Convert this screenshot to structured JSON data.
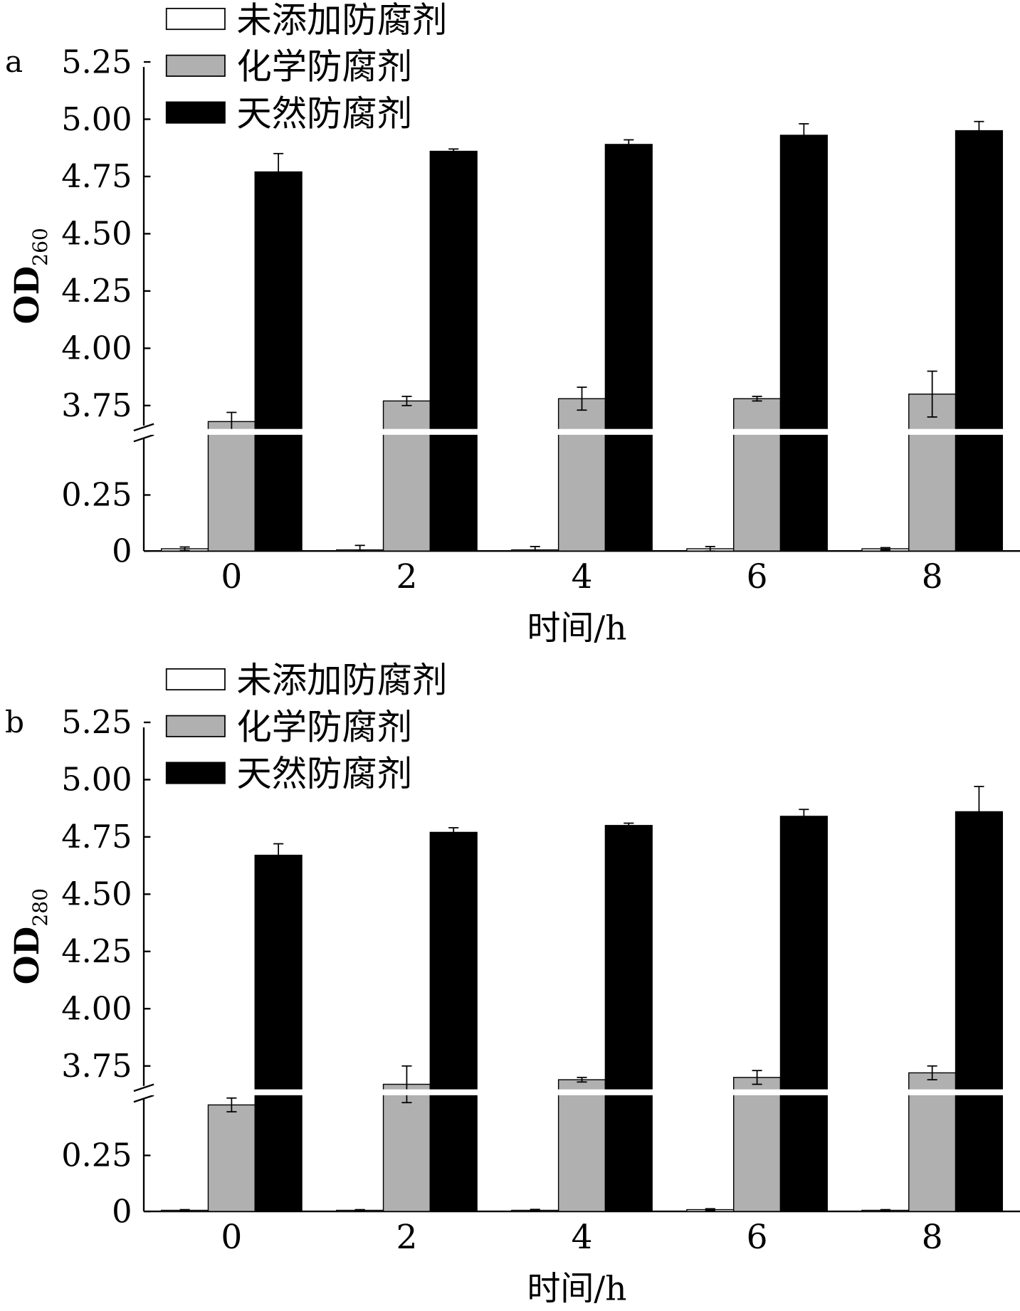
{
  "chart_data": [
    {
      "type": "bar",
      "panel_label": "a",
      "ylabel_main": "OD",
      "ylabel_sub": "260",
      "xlabel": "时间/h",
      "categories": [
        "0",
        "2",
        "4",
        "6",
        "8"
      ],
      "y_axis_break": true,
      "ylim_lower": [
        0,
        0.45
      ],
      "ylim_upper": [
        3.65,
        5.25
      ],
      "yticks_lower": [
        "0",
        "0.25"
      ],
      "yticks_upper": [
        "3.75",
        "4.00",
        "4.25",
        "4.50",
        "4.75",
        "5.00",
        "5.25"
      ],
      "legend_position": "top-left",
      "series": [
        {
          "name": "未添加防腐剂",
          "color": "#ffffff",
          "values": [
            0.01,
            0.005,
            0.005,
            0.01,
            0.01
          ],
          "errors": [
            0.008,
            0.02,
            0.015,
            0.01,
            0.005
          ]
        },
        {
          "name": "化学防腐剂",
          "color": "#b0b0b0",
          "values": [
            3.68,
            3.77,
            3.78,
            3.78,
            3.8
          ],
          "errors": [
            0.04,
            0.02,
            0.05,
            0.01,
            0.1
          ]
        },
        {
          "name": "天然防腐剂",
          "color": "#000000",
          "values": [
            4.77,
            4.86,
            4.89,
            4.93,
            4.95
          ],
          "errors": [
            0.08,
            0.01,
            0.02,
            0.05,
            0.04
          ]
        }
      ]
    },
    {
      "type": "bar",
      "panel_label": "b",
      "ylabel_main": "OD",
      "ylabel_sub": "280",
      "xlabel": "时间/h",
      "categories": [
        "0",
        "2",
        "4",
        "6",
        "8"
      ],
      "y_axis_break": true,
      "ylim_lower": [
        0,
        0.45
      ],
      "ylim_upper": [
        3.55,
        5.25
      ],
      "yticks_lower": [
        "0",
        "0.25"
      ],
      "yticks_upper": [
        "3.75",
        "4.00",
        "4.25",
        "4.50",
        "4.75",
        "5.00",
        "5.25"
      ],
      "legend_position": "top-left",
      "series": [
        {
          "name": "未添加防腐剂",
          "color": "#ffffff",
          "values": [
            0.005,
            0.005,
            0.005,
            0.008,
            0.005
          ],
          "errors": [
            0.003,
            0.003,
            0.004,
            0.004,
            0.003
          ]
        },
        {
          "name": "化学防腐剂",
          "color": "#b0b0b0",
          "values": [
            3.58,
            3.67,
            3.69,
            3.7,
            3.72
          ],
          "errors": [
            0.03,
            0.08,
            0.01,
            0.03,
            0.03
          ]
        },
        {
          "name": "天然防腐剂",
          "color": "#000000",
          "values": [
            4.67,
            4.77,
            4.8,
            4.84,
            4.86
          ],
          "errors": [
            0.05,
            0.02,
            0.01,
            0.03,
            0.11
          ]
        }
      ]
    }
  ]
}
